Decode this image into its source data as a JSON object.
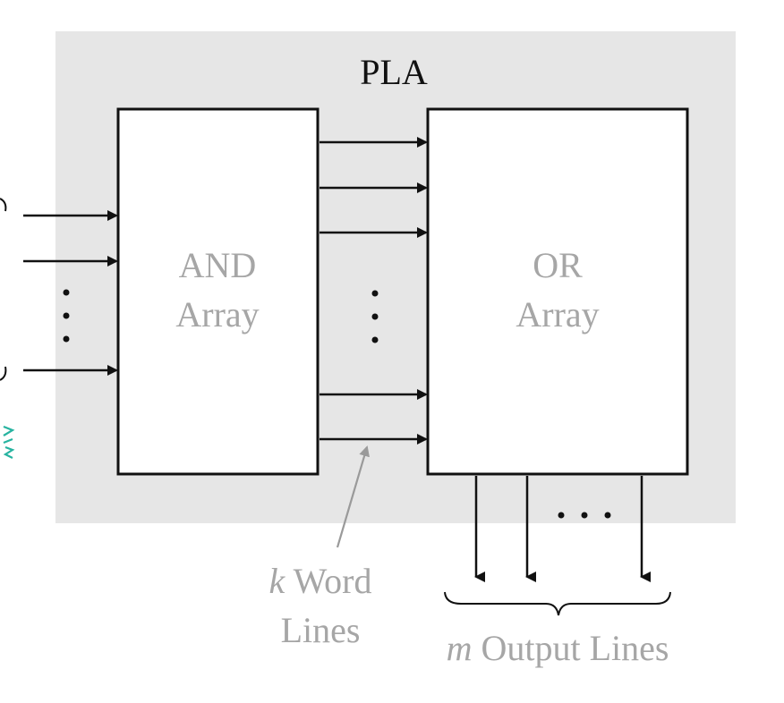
{
  "diagram": {
    "title": "PLA",
    "and_array": {
      "line1": "AND",
      "line2": "Array"
    },
    "or_array": {
      "line1": "OR",
      "line2": "Array"
    },
    "word_lines": {
      "var": "k",
      "line1_rest": " Word",
      "line2": "Lines"
    },
    "output_lines": {
      "var": "m",
      "rest": " Output Lines"
    },
    "colors": {
      "background_panel": "#e6e6e6",
      "box_fill": "#ffffff",
      "stroke": "#111111",
      "gray_text": "#a6a6a6",
      "annotation_stroke": "#9a9a9a",
      "edge_mark": "#27b3a0"
    }
  }
}
